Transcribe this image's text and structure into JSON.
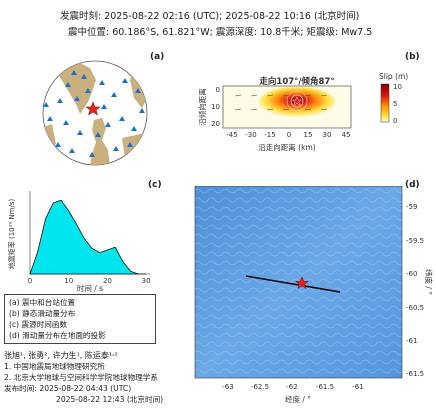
{
  "header": {
    "line1": "发震时刻: 2025-08-22 02:16 (UTC);   2025-08-22  10:16 (北京时间)",
    "line2": "震中位置: 60.186°S,  61.821°W;  震源深度: 10.8千米; 矩震级: Mw7.5"
  },
  "panels": {
    "a": {
      "label": "(a)"
    },
    "b": {
      "label": "(b)",
      "title": "走向107°/倾角87°",
      "colorbar_title": "Slip (m)",
      "colorbar_ticks": [
        "10",
        "5",
        "0"
      ],
      "xlabel": "沿走向距离 (km)",
      "ylabel": "沿倾向距离",
      "xticks": [
        "-45",
        "-30",
        "-15",
        "0",
        "15",
        "30",
        "45"
      ],
      "yticks": [
        "0",
        "10",
        "20"
      ]
    },
    "c": {
      "label": "(c)",
      "xlabel": "时间 / s",
      "ylabel": "地震矩率 (10¹⁹ Nm/s)",
      "xticks": [
        "0",
        "10",
        "20",
        "30"
      ]
    },
    "d": {
      "label": "(d)",
      "xlabel": "经度 / °",
      "ylabel": "纬度 / °",
      "xticks": [
        "-63",
        "-62.5",
        "-62",
        "-61.5",
        "-61"
      ],
      "yticks": [
        "-59",
        "-59.5",
        "-60",
        "-60.5",
        "-61",
        "-61.5"
      ]
    }
  },
  "chart_data": {
    "type": "area",
    "x": [
      0,
      2,
      4,
      6,
      8,
      10,
      12,
      14,
      16,
      18,
      20,
      22,
      24,
      26,
      28,
      30
    ],
    "y": [
      0,
      2.5,
      6.2,
      8.0,
      8.3,
      7.1,
      5.6,
      4.0,
      2.9,
      2.4,
      2.7,
      3.0,
      1.4,
      0.3,
      0,
      0
    ],
    "xlim": [
      0,
      31
    ],
    "ylim": [
      0,
      9
    ]
  },
  "legend": {
    "items": [
      "(a) 震中和台站位置",
      "(b) 静态滑动量分布",
      "(c) 震源时间函数",
      "(d) 滑动量分布在地面的投影"
    ]
  },
  "footer": {
    "authors": "张旭¹, 张勇², 许力生¹, 陈运泰¹˒²",
    "affil1": "1. 中国地震局地球物理研究所",
    "affil2": "2. 北京大学地球与空间科学学院地球物理学系",
    "release_label": "发布时间:",
    "release_utc": "2025-08-22  04:43 (UTC)",
    "release_bj": "2025-08-22  12:43 (北京时间)"
  },
  "colors": {
    "ocean": "#5d9ce0",
    "land": "#c9b07e",
    "cyan": "#00e5ee",
    "star": "#e8231c"
  }
}
